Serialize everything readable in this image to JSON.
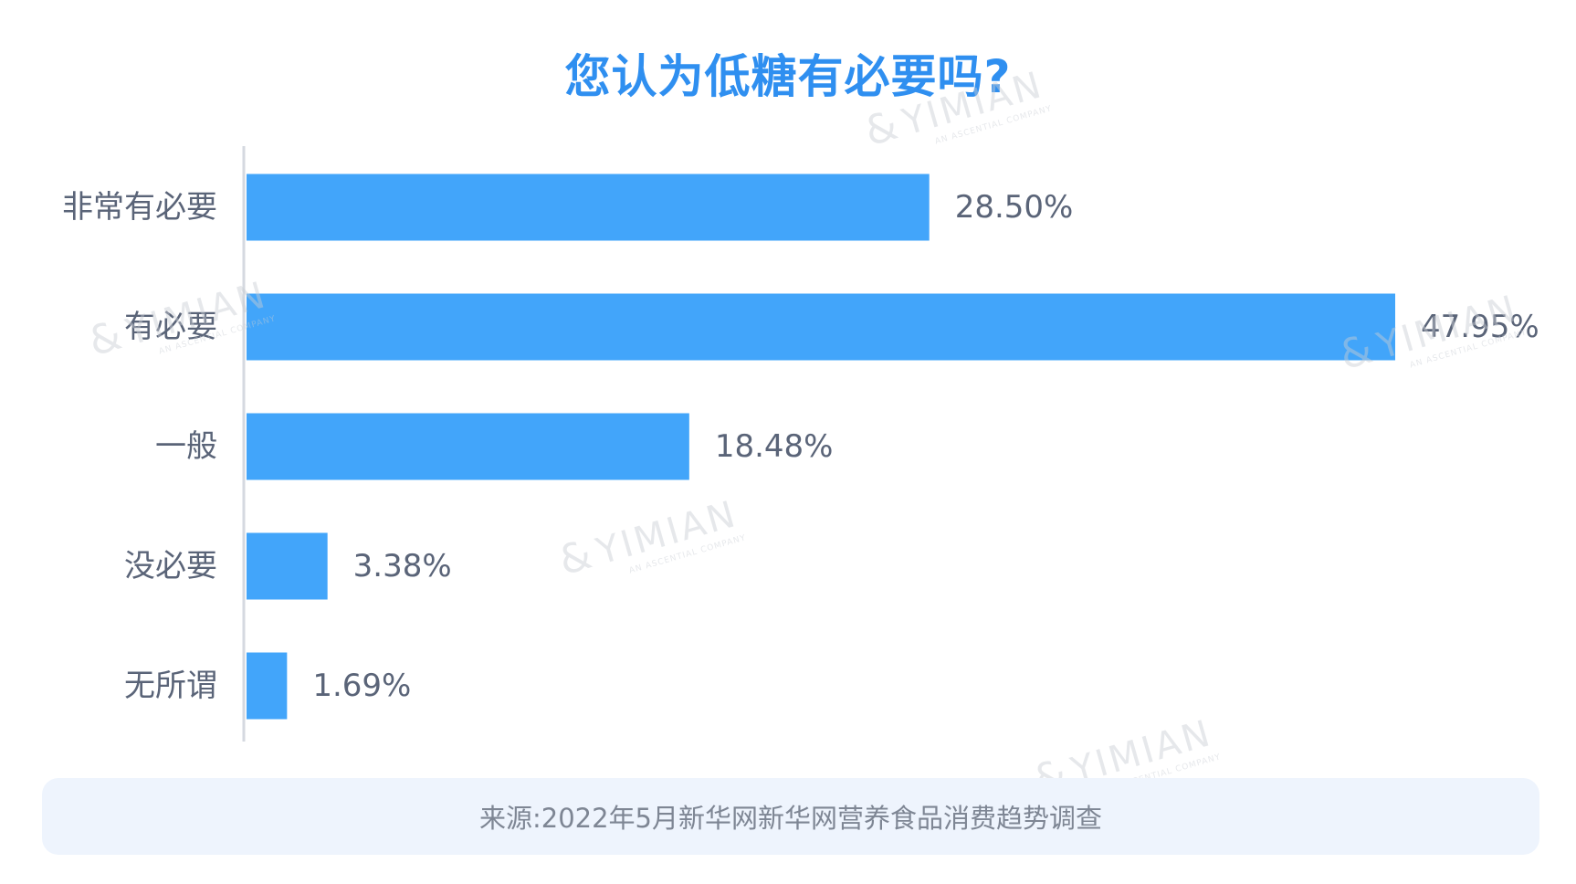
{
  "title": "您认为低糖有必要吗?",
  "source": "来源:2022年5月新华网新华网营养食品消费趋势调查",
  "watermark": {
    "main": "YIMIAN",
    "sub": "AN ASCENTIAL COMPANY",
    "mark": "&"
  },
  "colors": {
    "bar": "#42a5fa",
    "title": "#2f8ff0",
    "axis": "#d5d9e0",
    "text": "#5a6478",
    "source_bg": "#eef4fd"
  },
  "chart_data": {
    "type": "bar",
    "orientation": "horizontal",
    "title": "您认为低糖有必要吗?",
    "categories": [
      "非常有必要",
      "有必要",
      "一般",
      "没必要",
      "无所谓"
    ],
    "values": [
      28.5,
      47.95,
      18.48,
      3.38,
      1.69
    ],
    "value_labels": [
      "28.50%",
      "47.95%",
      "18.48%",
      "3.38%",
      "1.69%"
    ],
    "unit": "%",
    "xlim": [
      0,
      47.95
    ],
    "grid": false,
    "legend": "none"
  }
}
